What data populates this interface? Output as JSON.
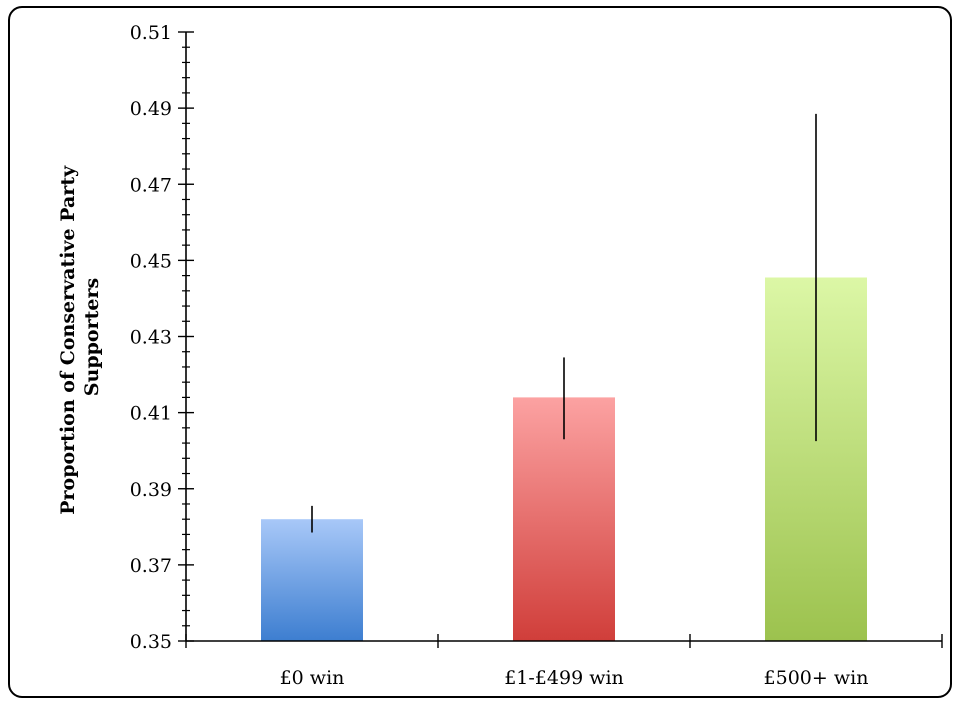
{
  "chart_data": {
    "type": "bar",
    "title": "",
    "xlabel": "",
    "ylabel": "Proportion of Conservative Party Supporters",
    "ylabel_lines": [
      "Proportion of Conservative Party",
      "Supporters"
    ],
    "ylim": [
      0.35,
      0.51
    ],
    "yticks": [
      "0.35",
      "0.37",
      "0.39",
      "0.41",
      "0.43",
      "0.45",
      "0.47",
      "0.49",
      "0.51"
    ],
    "categories": [
      "£0 win",
      "£1-£499 win",
      "£500+ win"
    ],
    "values": [
      0.382,
      0.414,
      0.4455
    ],
    "error_bars": [
      [
        0.3785,
        0.3855
      ],
      [
        0.403,
        0.4245
      ],
      [
        0.4025,
        0.4885
      ]
    ],
    "bar_colors": [
      [
        "#a8c8f8",
        "#3d7ed0"
      ],
      [
        "#fca2a2",
        "#d03e3a"
      ],
      [
        "#dcf7a6",
        "#9cc24e"
      ]
    ],
    "grid": false,
    "legend": "none"
  }
}
